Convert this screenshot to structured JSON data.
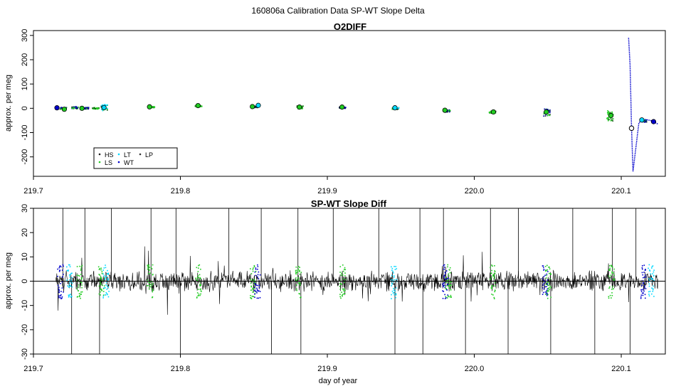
{
  "page_title": "160806a   Calibration Data SP-WT Slope Delta",
  "chart_data": [
    {
      "type": "scatter",
      "title": "O2DIFF",
      "xlabel": "",
      "ylabel": "approx. per meg",
      "xlim": [
        219.7,
        220.13
      ],
      "ylim": [
        -280,
        320
      ],
      "x_ticks": [
        "219.7",
        "219.8",
        "219.9",
        "220.0",
        "220.1"
      ],
      "y_ticks": [
        "-200",
        "-100",
        "0",
        "100",
        "200",
        "300"
      ],
      "grid": false,
      "legend_position": "bottom-left",
      "legend": [
        {
          "name": "HS",
          "color": "#1a1a1a"
        },
        {
          "name": "LT",
          "color": "#00d8ff"
        },
        {
          "name": "LP",
          "color": "#333333"
        },
        {
          "name": "LS",
          "color": "#22cc22"
        },
        {
          "name": "WT",
          "color": "#0000cc"
        }
      ],
      "clusters": [
        {
          "x": 219.72,
          "y": 2,
          "spread": 8,
          "color": "#0000aa"
        },
        {
          "x": 219.728,
          "y": 5,
          "spread": 10,
          "color": "#0000aa"
        },
        {
          "x": 219.735,
          "y": 3,
          "spread": 8,
          "color": "#0000aa"
        },
        {
          "x": 219.742,
          "y": 2,
          "spread": 6,
          "color": "#22cc22"
        },
        {
          "x": 219.748,
          "y": 5,
          "spread": 25,
          "color": "#00d8ff"
        },
        {
          "x": 219.78,
          "y": 7,
          "spread": 5,
          "color": "#22cc22"
        },
        {
          "x": 219.812,
          "y": 11,
          "spread": 6,
          "color": "#22cc22"
        },
        {
          "x": 219.85,
          "y": 8,
          "spread": 6,
          "color": "#0000aa"
        },
        {
          "x": 219.881,
          "y": 6,
          "spread": 12,
          "color": "#22cc22"
        },
        {
          "x": 219.91,
          "y": 5,
          "spread": 6,
          "color": "#0000aa"
        },
        {
          "x": 219.946,
          "y": 2,
          "spread": 10,
          "color": "#00d8ff"
        },
        {
          "x": 219.981,
          "y": -8,
          "spread": 12,
          "color": "#0000aa"
        },
        {
          "x": 220.012,
          "y": -14,
          "spread": 10,
          "color": "#22cc22"
        },
        {
          "x": 220.049,
          "y": -15,
          "spread": 30,
          "color": "#0000aa"
        },
        {
          "x": 220.092,
          "y": -28,
          "spread": 45,
          "color": "#22cc22"
        },
        {
          "x": 220.115,
          "y": -50,
          "spread": 10,
          "color": "#0000aa"
        }
      ],
      "circle_markers": [
        {
          "x": 219.716,
          "y": 2,
          "color": "#0000cc"
        },
        {
          "x": 219.721,
          "y": -4,
          "color": "#22cc22"
        },
        {
          "x": 219.733,
          "y": 0,
          "color": "#22cc22"
        },
        {
          "x": 219.748,
          "y": 3,
          "color": "#00d8ff"
        },
        {
          "x": 219.779,
          "y": 6,
          "color": "#22cc22"
        },
        {
          "x": 219.812,
          "y": 11,
          "color": "#22cc22"
        },
        {
          "x": 219.849,
          "y": 7,
          "color": "#22cc22"
        },
        {
          "x": 219.853,
          "y": 12,
          "color": "#00d8ff"
        },
        {
          "x": 219.881,
          "y": 5,
          "color": "#22cc22"
        },
        {
          "x": 219.91,
          "y": 5,
          "color": "#22cc22"
        },
        {
          "x": 219.946,
          "y": 2,
          "color": "#00d8ff"
        },
        {
          "x": 219.98,
          "y": -8,
          "color": "#22cc22"
        },
        {
          "x": 220.013,
          "y": -15,
          "color": "#22cc22"
        },
        {
          "x": 220.049,
          "y": -15,
          "color": "#22cc22"
        },
        {
          "x": 220.093,
          "y": -30,
          "color": "#22cc22"
        },
        {
          "x": 220.114,
          "y": -48,
          "color": "#00d8ff"
        },
        {
          "x": 220.122,
          "y": -55,
          "color": "#0000cc"
        }
      ],
      "spike": {
        "x": [
          220.105,
          220.106,
          220.107,
          220.108,
          220.11,
          220.112,
          220.115,
          220.12,
          220.125
        ],
        "y": [
          290,
          180,
          -80,
          -260,
          -160,
          -60,
          -45,
          -50,
          -65
        ]
      },
      "open_circle": {
        "x": 220.107,
        "y": -82
      }
    },
    {
      "type": "line",
      "title": "SP-WT Slope Diff",
      "xlabel": "day of year",
      "ylabel": "approx. per meg",
      "xlim": [
        219.7,
        220.13
      ],
      "ylim": [
        -30,
        30
      ],
      "x_ticks": [
        "219.7",
        "219.8",
        "219.9",
        "220.0",
        "220.1"
      ],
      "y_ticks": [
        "-30",
        "-20",
        "-10",
        "0",
        "10",
        "20",
        "30"
      ],
      "grid": false,
      "reference_line_y": 0,
      "x_range": [
        219.715,
        220.125
      ],
      "noise_amplitude": 3,
      "spikes": [
        {
          "x": 219.72,
          "y": 30
        },
        {
          "x": 219.726,
          "y": -30
        },
        {
          "x": 219.735,
          "y": 30
        },
        {
          "x": 219.745,
          "y": -30
        },
        {
          "x": 219.753,
          "y": 30
        },
        {
          "x": 219.78,
          "y": 30
        },
        {
          "x": 219.797,
          "y": 30
        },
        {
          "x": 219.8,
          "y": -30
        },
        {
          "x": 219.833,
          "y": 30
        },
        {
          "x": 219.855,
          "y": 30
        },
        {
          "x": 219.862,
          "y": -30
        },
        {
          "x": 219.88,
          "y": 30
        },
        {
          "x": 219.882,
          "y": -30
        },
        {
          "x": 219.904,
          "y": 30
        },
        {
          "x": 219.935,
          "y": 30
        },
        {
          "x": 219.946,
          "y": -30
        },
        {
          "x": 219.963,
          "y": 30
        },
        {
          "x": 219.965,
          "y": -30
        },
        {
          "x": 219.979,
          "y": 30
        },
        {
          "x": 219.994,
          "y": -30
        },
        {
          "x": 220.011,
          "y": 30
        },
        {
          "x": 220.023,
          "y": -30
        },
        {
          "x": 220.03,
          "y": 30
        },
        {
          "x": 220.052,
          "y": -30
        },
        {
          "x": 220.067,
          "y": 30
        },
        {
          "x": 220.082,
          "y": -30
        },
        {
          "x": 220.094,
          "y": 30
        },
        {
          "x": 220.106,
          "y": -30
        },
        {
          "x": 220.11,
          "y": 30
        }
      ],
      "marker_bands": [
        {
          "x": 219.718,
          "color": "#0000cc"
        },
        {
          "x": 219.724,
          "color": "#00d8ff"
        },
        {
          "x": 219.731,
          "color": "#22cc22"
        },
        {
          "x": 219.746,
          "color": "#22cc22"
        },
        {
          "x": 219.749,
          "color": "#00d8ff"
        },
        {
          "x": 219.779,
          "color": "#22cc22"
        },
        {
          "x": 219.812,
          "color": "#22cc22"
        },
        {
          "x": 219.849,
          "color": "#22cc22"
        },
        {
          "x": 219.852,
          "color": "#0000cc"
        },
        {
          "x": 219.88,
          "color": "#22cc22"
        },
        {
          "x": 219.91,
          "color": "#22cc22"
        },
        {
          "x": 219.945,
          "color": "#00d8ff"
        },
        {
          "x": 219.98,
          "color": "#0000cc"
        },
        {
          "x": 219.982,
          "color": "#22cc22"
        },
        {
          "x": 220.012,
          "color": "#22cc22"
        },
        {
          "x": 220.048,
          "color": "#0000cc"
        },
        {
          "x": 220.05,
          "color": "#22cc22"
        },
        {
          "x": 220.093,
          "color": "#22cc22"
        },
        {
          "x": 220.115,
          "color": "#0000cc"
        },
        {
          "x": 220.12,
          "color": "#00d8ff"
        }
      ]
    }
  ]
}
